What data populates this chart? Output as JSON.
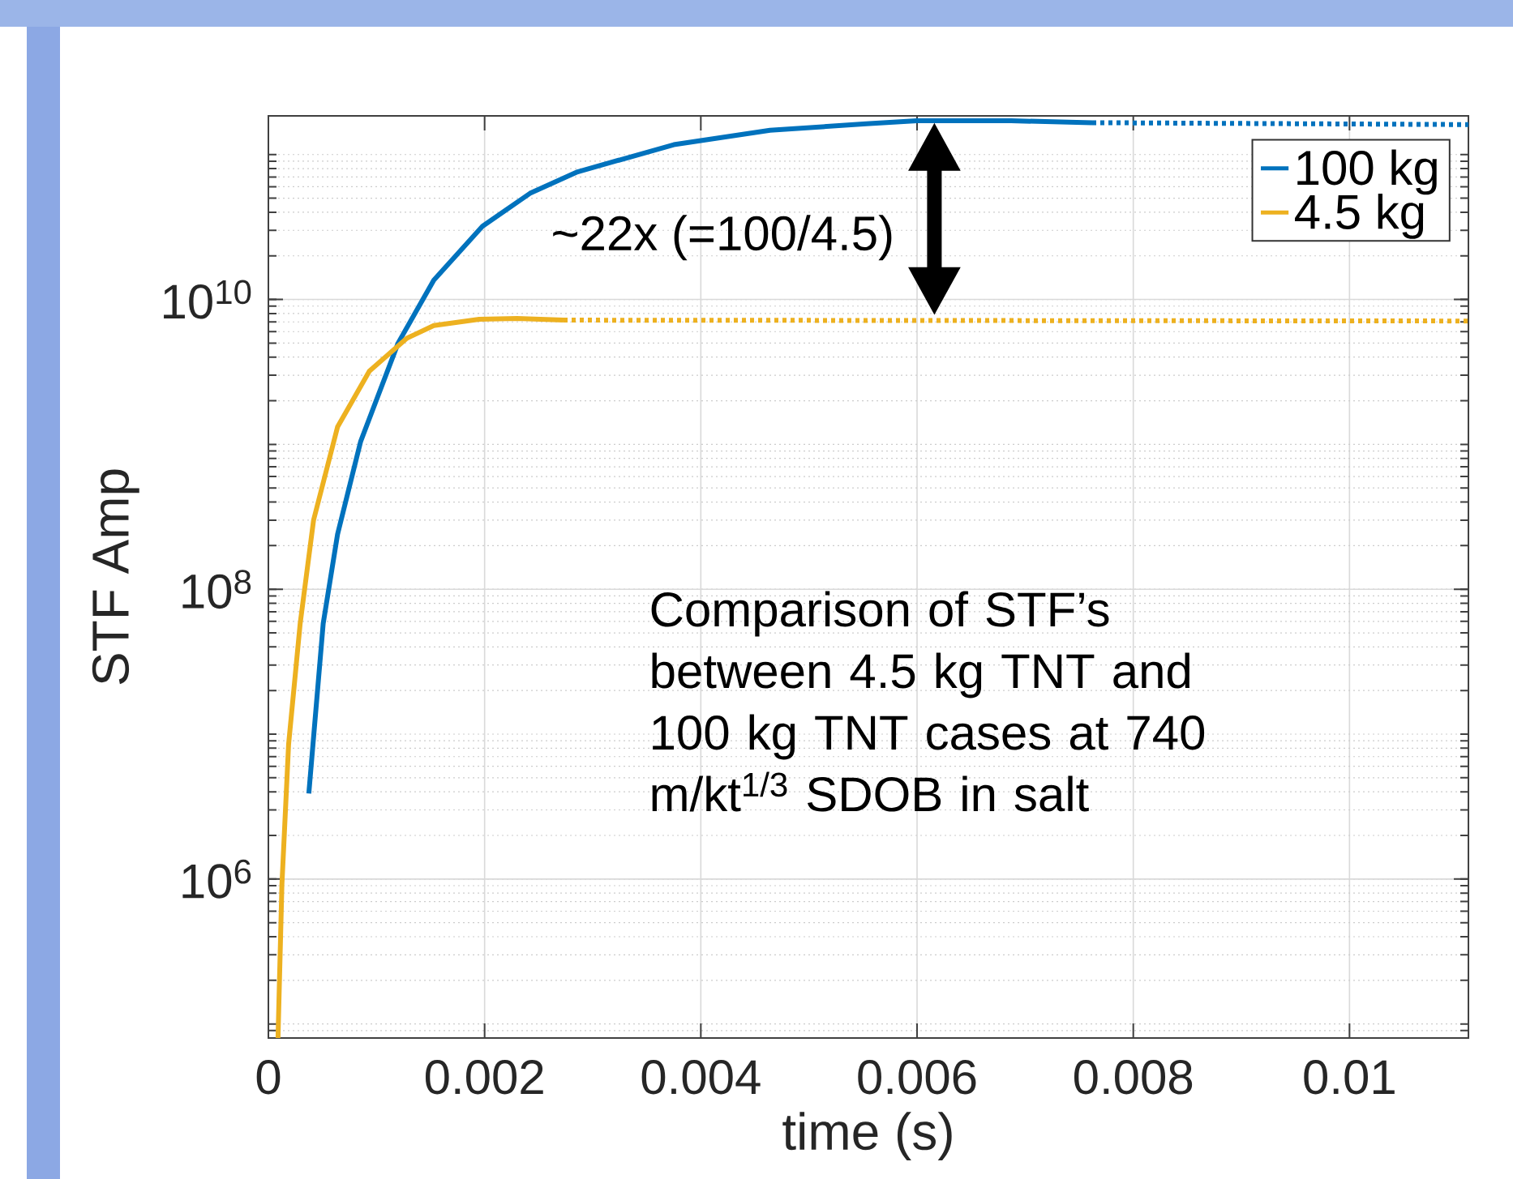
{
  "chart_data": {
    "type": "line",
    "xlabel": "time (s)",
    "ylabel": "STF Amp",
    "xlim": [
      0,
      0.0111
    ],
    "ylim": [
      80000,
      185000000000
    ],
    "log": "y",
    "grid": true,
    "legend": "top right",
    "line_style": "solid",
    "xticks": [
      0,
      0.002,
      0.004,
      0.006,
      0.008,
      0.01
    ],
    "yticks": [
      {
        "value": 1000000,
        "label": "10$^{6}$"
      },
      {
        "value": 100000000,
        "label": "10$^{8}$"
      },
      {
        "value": 10000000000,
        "label": "10$^{10}$"
      }
    ],
    "series": [
      {
        "name": "100 kg",
        "color": "#0072bd",
        "x": [
          0.000374,
          0.000507,
          0.00064,
          0.000854,
          0.0012,
          0.00153,
          0.00198,
          0.00242,
          0.00286,
          0.00375,
          0.00464,
          0.00553,
          0.006,
          0.00687,
          0.00762
        ],
        "values": [
          3900000,
          58000000,
          240000000,
          1050000000,
          5000000000,
          13600000000,
          32000000000,
          54000000000,
          76000000000,
          117000000000,
          147000000000,
          163000000000,
          171000000000,
          171000000000,
          166000000000
        ]
      },
      {
        "name": "4.5 kg",
        "color": "#edb120",
        "x": [
          8.9e-05,
          0.000125,
          0.000187,
          0.000294,
          0.000418,
          0.00064,
          0.000934,
          0.00128,
          0.00153,
          0.00195,
          0.0023,
          0.00273
        ],
        "values": [
          80000,
          910000,
          8500000,
          58000000,
          300000000,
          1320000000,
          3200000000,
          5400000000,
          6600000000,
          7300000000,
          7400000000,
          7200000000
        ]
      },
      {
        "color": "#0072bd",
        "line_style": "dotted",
        "x": [
          0.00762,
          0.0111
        ],
        "values": [
          166000000000,
          161000000000
        ]
      },
      {
        "color": "#edb120",
        "line_style": "dotted",
        "x": [
          0.00273,
          0.0111
        ],
        "values": [
          7200000000,
          7100000000
        ]
      }
    ],
    "annotations": [
      "~22x (=100/4.5)",
      "Comparison of STF’s between 4.5 kg TNT and 100 kg TNT cases at 740 m/kt$^{1/3}$ SDOB in salt"
    ]
  }
}
